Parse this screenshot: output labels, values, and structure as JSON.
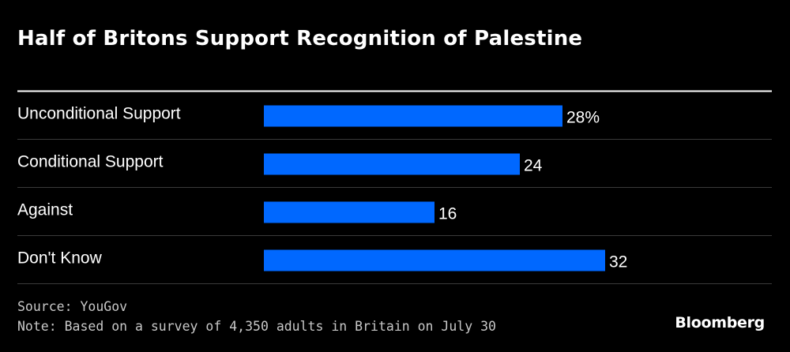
{
  "colors": {
    "background": "#000000",
    "bar": "#0068ff",
    "text": "#ffffff",
    "divider": "#3a3a3a",
    "top_rule": "#ffffff",
    "footer_text": "#c8c8c8"
  },
  "chart_data": {
    "type": "bar",
    "orientation": "horizontal",
    "title": "Half of Britons Support Recognition of Palestine",
    "categories": [
      "Unconditional Support",
      "Conditional Support",
      "Against",
      "Don't Know"
    ],
    "values": [
      28,
      24,
      16,
      32
    ],
    "value_labels": [
      "28%",
      "24",
      "16",
      "32"
    ],
    "unit": "%",
    "xlim": [
      0,
      32
    ],
    "grid": false,
    "legend": "none"
  },
  "footer": {
    "source": "Source: YouGov",
    "note": "Note: Based on a survey of 4,350 adults in Britain on July 30"
  },
  "brand": "Bloomberg"
}
